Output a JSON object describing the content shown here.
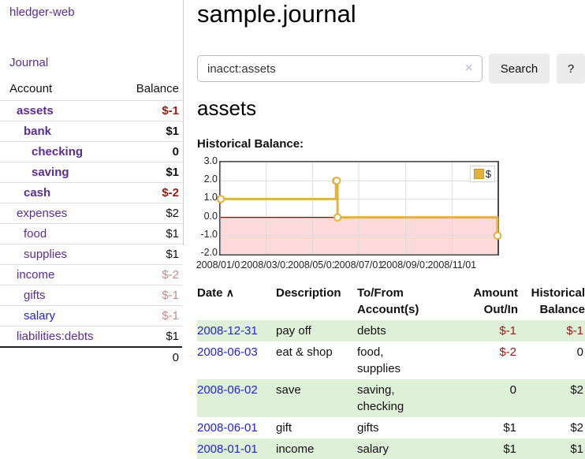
{
  "colors": {
    "link_purple": "#5b2d90",
    "link_blue": "#2323d6",
    "negative_strong": "#9b1914",
    "negative_faded": "#c98888",
    "stripe_green": "#dff0d8",
    "chart_gold": "#e2b23c",
    "chart_negative_region": "#fcdada",
    "chart_zero_line": "#8b0000"
  },
  "sidebar": {
    "brand": "hledger-web",
    "journal_link": "Journal",
    "accounts": {
      "col_account": "Account",
      "col_balance": "Balance",
      "rows": [
        {
          "name": "assets",
          "balance": "$-1",
          "level": 1,
          "bold": true,
          "neg": "strong",
          "link": "purple"
        },
        {
          "name": "bank",
          "balance": "$1",
          "level": 2,
          "bold": true,
          "neg": "none",
          "link": "purple"
        },
        {
          "name": "checking",
          "balance": "0",
          "level": 3,
          "bold": true,
          "neg": "none",
          "link": "purple"
        },
        {
          "name": "saving",
          "balance": "$1",
          "level": 3,
          "bold": true,
          "neg": "none",
          "link": "purple"
        },
        {
          "name": "cash",
          "balance": "$-2",
          "level": 2,
          "bold": true,
          "neg": "strong",
          "link": "purple"
        },
        {
          "name": "expenses",
          "balance": "$2",
          "level": 1,
          "bold": false,
          "neg": "none",
          "link": "purple"
        },
        {
          "name": "food",
          "balance": "$1",
          "level": 2,
          "bold": false,
          "neg": "none",
          "link": "purple"
        },
        {
          "name": "supplies",
          "balance": "$1",
          "level": 2,
          "bold": false,
          "neg": "none",
          "link": "purple"
        },
        {
          "name": "income",
          "balance": "$-2",
          "level": 1,
          "bold": false,
          "neg": "faded",
          "link": "purple"
        },
        {
          "name": "gifts",
          "balance": "$-1",
          "level": 2,
          "bold": false,
          "neg": "faded",
          "link": "purple"
        },
        {
          "name": "salary",
          "balance": "$-1",
          "level": 2,
          "bold": false,
          "neg": "faded",
          "link": "blue"
        },
        {
          "name": "liabilities:debts",
          "balance": "$1",
          "level": 1,
          "bold": false,
          "neg": "none",
          "link": "purple"
        }
      ],
      "total": "0"
    }
  },
  "main": {
    "title": "sample.journal",
    "search": {
      "value": "inacct:assets",
      "clear_icon": "×",
      "search_button": "Search",
      "help_button": "?"
    },
    "account_heading": "assets",
    "chart_title": "Historical Balance:"
  },
  "chart_data": {
    "type": "line",
    "step": true,
    "title": "Historical Balance",
    "x_domain": [
      "2008-01-01",
      "2008-12-31"
    ],
    "xticks": [
      "2008/01/01",
      "2008/03/01",
      "2008/05/01",
      "2008/07/01",
      "2008/09/01",
      "2008/11/01"
    ],
    "yticks": [
      "3.0",
      "2.0",
      "1.0",
      "0.0",
      "-1.0",
      "-2.0"
    ],
    "ylim": [
      -2,
      3
    ],
    "grid": true,
    "legend_position": "top-right",
    "legend": [
      {
        "label": "$",
        "color": "#e2b23c"
      }
    ],
    "series": [
      {
        "name": "$",
        "points": [
          {
            "x": "2008-01-01",
            "y": 1
          },
          {
            "x": "2008-06-01",
            "y": 2
          },
          {
            "x": "2008-06-02",
            "y": 2
          },
          {
            "x": "2008-06-03",
            "y": 0
          },
          {
            "x": "2008-12-31",
            "y": -1
          }
        ]
      }
    ]
  },
  "register": {
    "headers": {
      "date": "Date",
      "sort_asc_icon": "∧",
      "description": "Description",
      "accounts": "To/From Account(s)",
      "amount": "Amount Out/In",
      "balance": "Historical Balance"
    },
    "rows": [
      {
        "date": "2008-12-31",
        "description": "pay off",
        "accounts": "debts",
        "amount": "$-1",
        "amount_negative": true,
        "balance": "$-1",
        "balance_negative": true
      },
      {
        "date": "2008-06-03",
        "description": "eat & shop",
        "accounts": "food, supplies",
        "amount": "$-2",
        "amount_negative": true,
        "balance": "0",
        "balance_negative": false
      },
      {
        "date": "2008-06-02",
        "description": "save",
        "accounts": "saving, checking",
        "amount": "0",
        "amount_negative": false,
        "balance": "$2",
        "balance_negative": false
      },
      {
        "date": "2008-06-01",
        "description": "gift",
        "accounts": "gifts",
        "amount": "$1",
        "amount_negative": false,
        "balance": "$2",
        "balance_negative": false
      },
      {
        "date": "2008-01-01",
        "description": "income",
        "accounts": "salary",
        "amount": "$1",
        "amount_negative": false,
        "balance": "$1",
        "balance_negative": false
      }
    ]
  }
}
